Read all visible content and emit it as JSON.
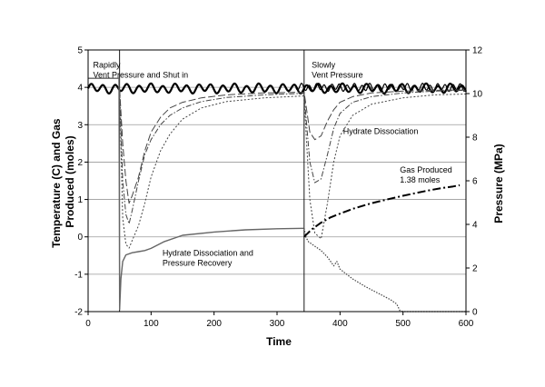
{
  "chart_data": {
    "type": "line",
    "xlabel": "Time",
    "ylabel_left": "Temperature (C) and Gas Produced (moles)",
    "ylabel_left_lines": [
      "Temperature (C) and Gas",
      "Produced (moles)"
    ],
    "ylabel_right": "Pressure (MPa)",
    "xlim": [
      0,
      600
    ],
    "ylim_left": [
      -2,
      5
    ],
    "ylim_right": [
      0,
      12
    ],
    "x_ticks": [
      0,
      100,
      200,
      300,
      400,
      500,
      600
    ],
    "y_ticks_left": [
      -2,
      -1,
      0,
      1,
      2,
      3,
      4,
      5
    ],
    "y_ticks_right": [
      0,
      2,
      4,
      6,
      8,
      10,
      12
    ],
    "grid": "horizontal",
    "background": "#ffffff",
    "event_lines_x": [
      50,
      343
    ],
    "annotations": [
      {
        "lines": [
          "Rapidly",
          "Vent Pressure and Shut in"
        ],
        "x": 8,
        "y": 4.53
      },
      {
        "lines": [
          "Slowly",
          "Vent Pressure"
        ],
        "x": 355,
        "y": 4.53
      },
      {
        "lines": [
          "Hydrate Dissociation"
        ],
        "x": 405,
        "y": 2.75
      },
      {
        "lines": [
          "Gas Produced",
          "1.38 moles"
        ],
        "x": 495,
        "y": 1.72
      },
      {
        "lines": [
          "Hydrate Dissociation and",
          "Pressure Recovery"
        ],
        "x": 118,
        "y": -0.5
      }
    ],
    "series": [
      {
        "axis": "left",
        "color": "#000000",
        "width": 2.2,
        "dash": "",
        "kind": "osc",
        "x": [
          0,
          600
        ],
        "base": 3.97,
        "amp": 0.1,
        "period": 19
      },
      {
        "axis": "left",
        "color": "#000000",
        "width": 1.2,
        "dash": "",
        "kind": "osc",
        "x": [
          330,
          600
        ],
        "base": 4.0,
        "amp": 0.08,
        "period": 12
      },
      {
        "axis": "left",
        "color": "#444444",
        "width": 1,
        "dash": "8,3",
        "x": [
          50,
          55,
          60,
          65,
          70,
          80,
          90,
          100,
          115,
          130,
          150,
          180,
          220,
          280,
          343,
          347,
          352,
          360,
          370,
          380,
          390,
          400,
          420,
          450,
          500,
          550,
          600
        ],
        "y": [
          3.95,
          2.5,
          1.5,
          0.9,
          1.1,
          1.6,
          2.3,
          2.8,
          3.2,
          3.45,
          3.6,
          3.72,
          3.8,
          3.85,
          3.87,
          3.4,
          2.8,
          2.6,
          2.7,
          3.1,
          3.4,
          3.6,
          3.75,
          3.85,
          3.9,
          3.92,
          3.93
        ]
      },
      {
        "axis": "left",
        "color": "#444444",
        "width": 1,
        "dash": "6,2,1.5,2",
        "x": [
          50,
          55,
          60,
          65,
          70,
          80,
          90,
          100,
          115,
          130,
          150,
          180,
          220,
          280,
          343,
          347,
          352,
          360,
          370,
          380,
          390,
          400,
          420,
          450,
          500,
          550,
          600
        ],
        "y": [
          3.95,
          1.5,
          0.6,
          0.35,
          0.7,
          1.5,
          2.2,
          2.6,
          3.0,
          3.25,
          3.45,
          3.62,
          3.73,
          3.8,
          3.84,
          3.0,
          2.0,
          1.45,
          1.55,
          2.2,
          2.9,
          3.3,
          3.6,
          3.75,
          3.85,
          3.9,
          3.92
        ]
      },
      {
        "axis": "left",
        "color": "#444444",
        "width": 1,
        "dash": "2,2",
        "x": [
          50,
          55,
          60,
          65,
          70,
          80,
          90,
          100,
          115,
          130,
          150,
          180,
          220,
          280,
          343,
          347,
          352,
          360,
          370,
          380,
          390,
          400,
          420,
          450,
          500,
          550,
          600
        ],
        "y": [
          3.95,
          0.5,
          -0.2,
          -0.3,
          -0.1,
          0.3,
          0.9,
          1.6,
          2.3,
          2.75,
          3.15,
          3.45,
          3.62,
          3.72,
          3.77,
          2.5,
          1.0,
          0.1,
          -0.05,
          0.9,
          2.0,
          2.7,
          3.25,
          3.55,
          3.72,
          3.8,
          3.82
        ]
      },
      {
        "axis": "right",
        "color": "#666666",
        "width": 1.4,
        "dash": "",
        "x": [
          0,
          48,
          49,
          50,
          52,
          55,
          60,
          70,
          80,
          90,
          100,
          120,
          150,
          200,
          250,
          300,
          343
        ],
        "y": [
          10.7,
          10.7,
          10.7,
          0.1,
          1.5,
          2.3,
          2.6,
          2.7,
          2.75,
          2.8,
          2.9,
          3.2,
          3.5,
          3.65,
          3.75,
          3.8,
          3.82
        ]
      },
      {
        "axis": "right",
        "color": "#444444",
        "width": 1.2,
        "dash": "1.5,1.5",
        "x": [
          343,
          346,
          350,
          360,
          370,
          380,
          390,
          395,
          400,
          420,
          440,
          460,
          480,
          490,
          495,
          500,
          600
        ],
        "y": [
          3.82,
          3.4,
          3.2,
          3.0,
          2.8,
          2.5,
          2.1,
          2.3,
          1.95,
          1.5,
          1.15,
          0.85,
          0.55,
          0.35,
          0.05,
          0.0,
          0.0
        ]
      },
      {
        "axis": "left",
        "color": "#000000",
        "width": 2,
        "dash": "9,3,2,3",
        "x": [
          343,
          355,
          370,
          385,
          400,
          420,
          450,
          480,
          500,
          520,
          540,
          560,
          580,
          590
        ],
        "y": [
          0.0,
          0.2,
          0.38,
          0.52,
          0.62,
          0.75,
          0.9,
          1.02,
          1.1,
          1.17,
          1.24,
          1.3,
          1.35,
          1.38
        ]
      }
    ]
  }
}
